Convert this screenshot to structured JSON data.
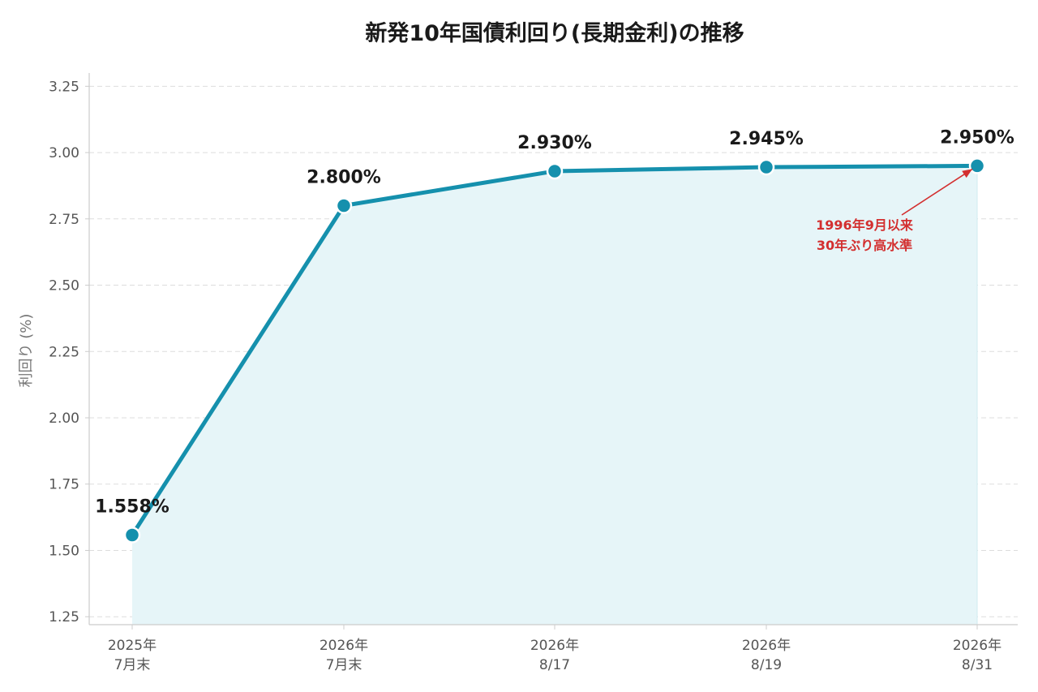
{
  "chart_data": {
    "type": "line",
    "title": "新発10年国債利回り(長期金利)の推移",
    "ylabel": "利回り (%)",
    "xlabel": "",
    "categories": [
      [
        "2025年",
        "7月末"
      ],
      [
        "2026年",
        "7月末"
      ],
      [
        "2026年",
        "8/17"
      ],
      [
        "2026年",
        "8/19"
      ],
      [
        "2026年",
        "8/31"
      ]
    ],
    "values": [
      1.558,
      2.8,
      2.93,
      2.945,
      2.95
    ],
    "data_labels": [
      "1.558%",
      "2.800%",
      "2.930%",
      "2.945%",
      "2.950%"
    ],
    "ylim": [
      1.22,
      3.3
    ],
    "yticks": [
      1.25,
      1.5,
      1.75,
      2.0,
      2.25,
      2.5,
      2.75,
      3.0,
      3.25
    ],
    "ytick_labels": [
      "1.25",
      "1.50",
      "1.75",
      "2.00",
      "2.25",
      "2.50",
      "2.75",
      "3.00",
      "3.25"
    ],
    "grid": true,
    "area_fill": true,
    "annotation": {
      "lines": [
        "1996年9月以来",
        "30年ぶり高水準"
      ],
      "points_to_index": 4
    },
    "colors": {
      "line": "#1590ad",
      "area": "#e6f5f8",
      "annotation": "#d32f2f",
      "grid": "#dddddd",
      "axis": "#cccccc"
    }
  }
}
